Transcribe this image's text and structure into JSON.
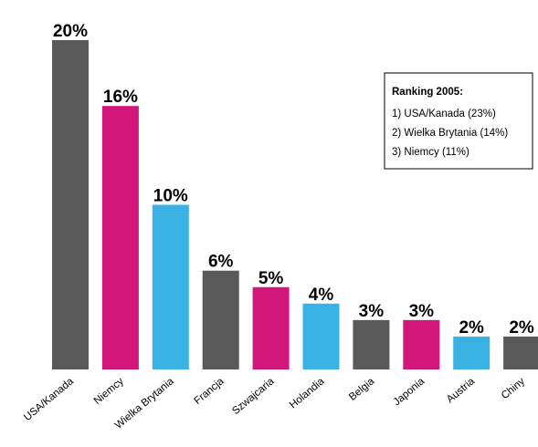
{
  "chart_data": {
    "type": "bar",
    "categories": [
      "USA/Kanada",
      "Niemcy",
      "Wielka Brytania",
      "Francja",
      "Szwajcaria",
      "Holandia",
      "Belgia",
      "Japonia",
      "Austria",
      "Chiny"
    ],
    "values": [
      20,
      16,
      10,
      6,
      5,
      4,
      3,
      3,
      2,
      2
    ],
    "value_labels": [
      "20%",
      "16%",
      "10%",
      "6%",
      "5%",
      "4%",
      "3%",
      "3%",
      "2%",
      "2%"
    ],
    "colors": [
      "#595959",
      "#d3177a",
      "#3bb2e4",
      "#595959",
      "#d3177a",
      "#3bb2e4",
      "#595959",
      "#d3177a",
      "#3bb2e4",
      "#595959"
    ],
    "ylim": [
      0,
      20
    ],
    "annotation": {
      "title": "Ranking 2005:",
      "lines": [
        "1) USA/Kanada (23%)",
        "2) Wielka Brytania (14%)",
        "3) Niemcy (11%)"
      ]
    }
  }
}
